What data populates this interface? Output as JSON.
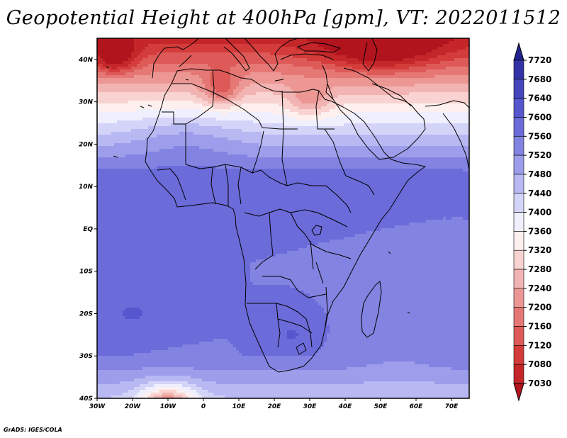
{
  "title": "Geopotential Height at 400hPa [gpm], VT: 2022011512",
  "credit": "GrADS: IGES/COLA",
  "chart_data": {
    "type": "heatmap",
    "variable": "Geopotential Height",
    "level": "400hPa",
    "units": "gpm",
    "valid_time": "2022011512",
    "lon_range": [
      -30,
      75
    ],
    "lat_range": [
      -40,
      45
    ],
    "x_ticks": [
      {
        "value": -30,
        "label": "30W"
      },
      {
        "value": -20,
        "label": "20W"
      },
      {
        "value": -10,
        "label": "10W"
      },
      {
        "value": 0,
        "label": "0"
      },
      {
        "value": 10,
        "label": "10E"
      },
      {
        "value": 20,
        "label": "20E"
      },
      {
        "value": 30,
        "label": "30E"
      },
      {
        "value": 40,
        "label": "40E"
      },
      {
        "value": 50,
        "label": "50E"
      },
      {
        "value": 60,
        "label": "60E"
      },
      {
        "value": 70,
        "label": "70E"
      }
    ],
    "y_ticks": [
      {
        "value": 40,
        "label": "40N"
      },
      {
        "value": 30,
        "label": "30N"
      },
      {
        "value": 20,
        "label": "20N"
      },
      {
        "value": 10,
        "label": "10N"
      },
      {
        "value": 0,
        "label": "EQ"
      },
      {
        "value": -10,
        "label": "10S"
      },
      {
        "value": -20,
        "label": "20S"
      },
      {
        "value": -30,
        "label": "30S"
      },
      {
        "value": -40,
        "label": "40S"
      }
    ],
    "colorbar": {
      "levels": [
        7030,
        7080,
        7120,
        7160,
        7200,
        7240,
        7280,
        7320,
        7360,
        7400,
        7440,
        7480,
        7520,
        7560,
        7600,
        7640,
        7680,
        7720
      ],
      "colors": [
        "#b2141e",
        "#c4262a",
        "#d43c3b",
        "#dd5a58",
        "#e57875",
        "#ec9794",
        "#f2b4b2",
        "#f8d3d1",
        "#fdf0ef",
        "#efeffd",
        "#d4d4f9",
        "#b8b8f3",
        "#9d9deb",
        "#8383e2",
        "#6b6bda",
        "#5656cf",
        "#4545bd",
        "#3333a6",
        "#22228e"
      ],
      "extend": "both"
    },
    "features": [
      {
        "name": "Polar-side low heights over Mediterranean / Middle East",
        "approx_min": 7080,
        "lon": 45,
        "lat": 42
      },
      {
        "name": "Cutoff low over Algeria",
        "approx_min": 7160,
        "lon": 5,
        "lat": 33
      },
      {
        "name": "Low over Egypt",
        "approx_min": 7200,
        "lon": 30,
        "lat": 30
      },
      {
        "name": "Southern Ocean trough",
        "approx_min": 7160,
        "lon": -10,
        "lat": -40
      },
      {
        "name": "Subtropical high over southern Africa",
        "approx_max": 7600,
        "lon": 25,
        "lat": -25
      },
      {
        "name": "Subtropical high over South Atlantic",
        "approx_max": 7600,
        "lon": -20,
        "lat": -20
      },
      {
        "name": "Tropical belt",
        "approx_value": 7560,
        "lon": 20,
        "lat": 0
      }
    ]
  }
}
